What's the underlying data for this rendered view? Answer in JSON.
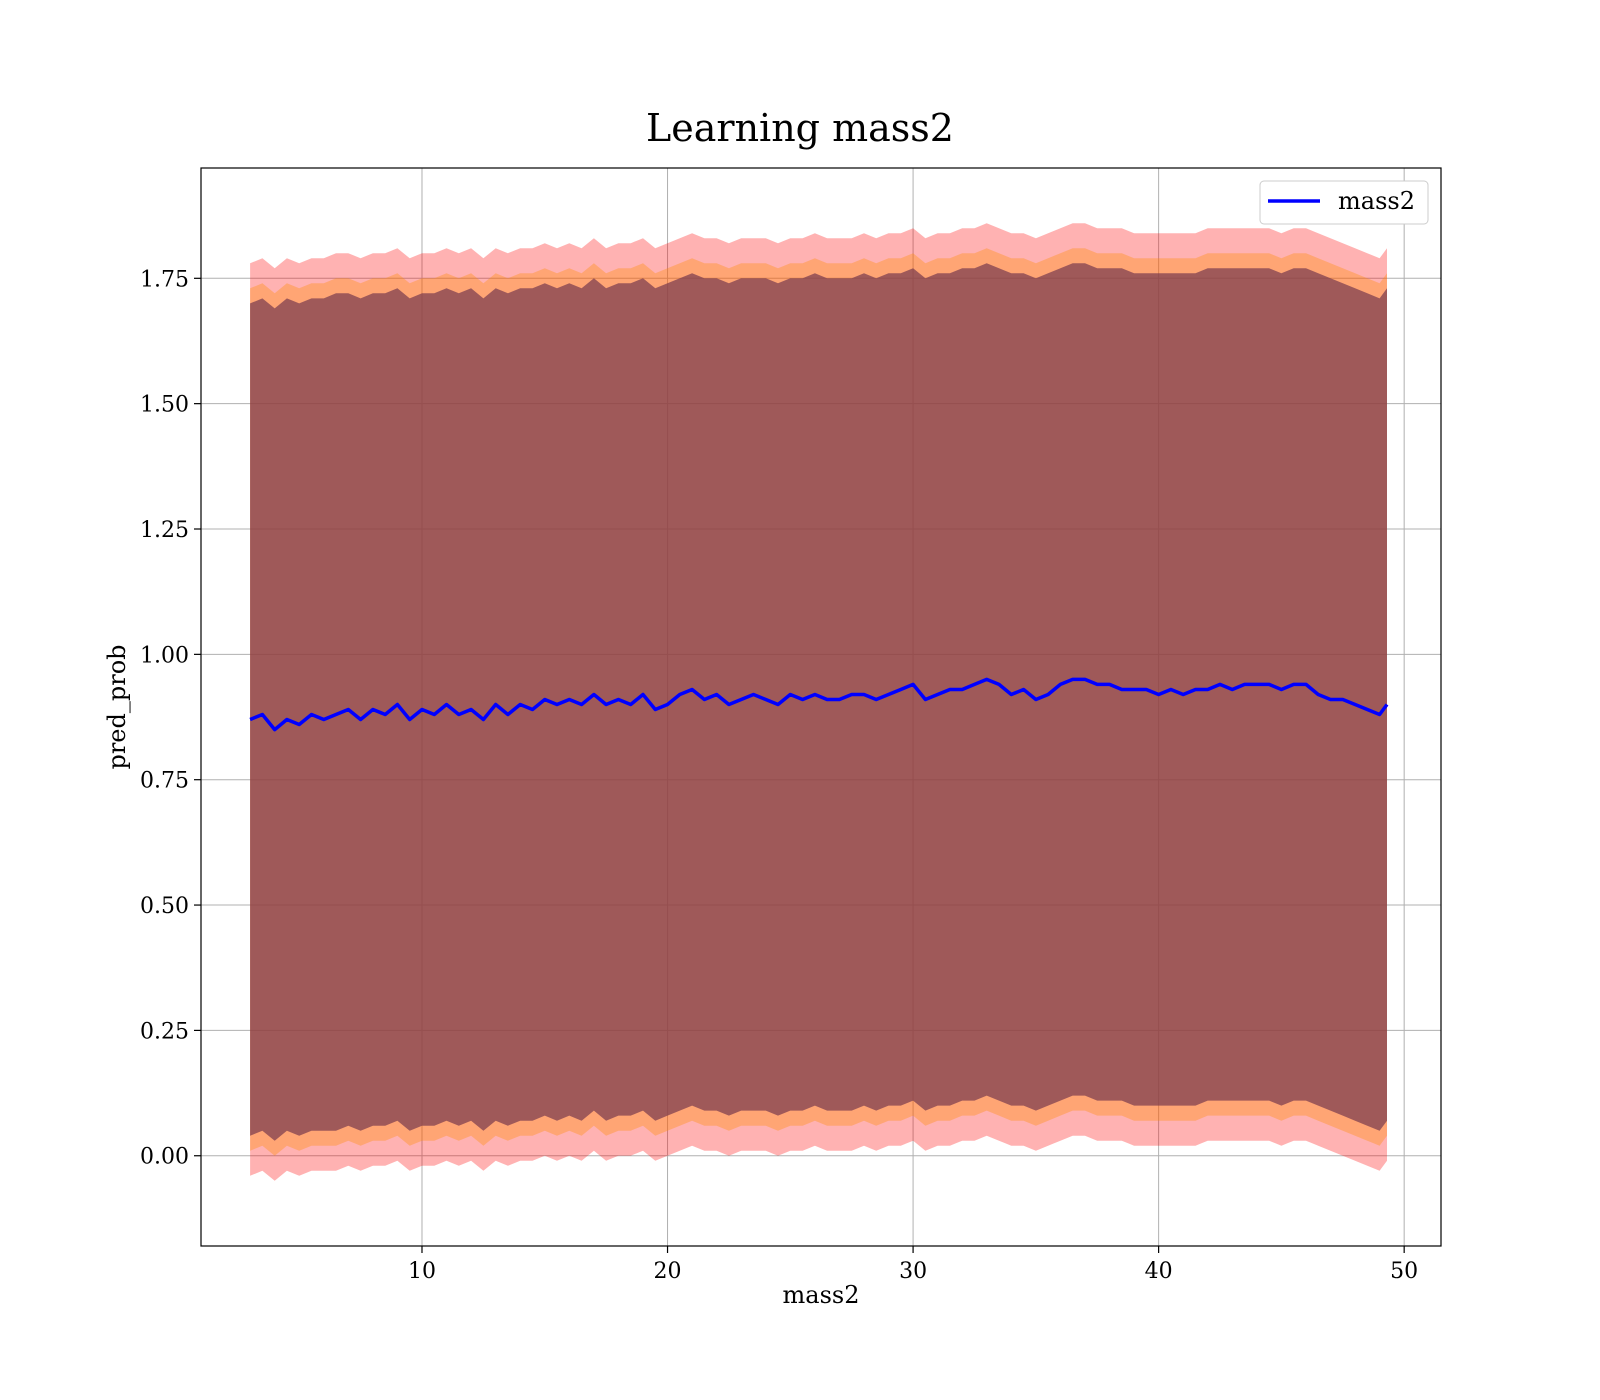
{
  "chart_data": {
    "type": "line",
    "title": "Learning mass2",
    "xlabel": "mass2",
    "ylabel": "pred_prob",
    "xlim": [
      1.0,
      51.5
    ],
    "ylim": [
      -0.18,
      1.97
    ],
    "xticks": [
      10,
      20,
      30,
      40,
      50
    ],
    "xtick_labels": [
      "10",
      "20",
      "30",
      "40",
      "50"
    ],
    "yticks": [
      0.0,
      0.25,
      0.5,
      0.75,
      1.0,
      1.25,
      1.5,
      1.75
    ],
    "ytick_labels": [
      "0.00",
      "0.25",
      "0.50",
      "0.75",
      "1.00",
      "1.25",
      "1.50",
      "1.75"
    ],
    "grid": true,
    "legend": {
      "position": "top-right",
      "entries": [
        "mass2"
      ]
    },
    "series": [
      {
        "name": "mass2",
        "color": "#0000ff",
        "x": [
          3.0,
          3.5,
          4.0,
          4.5,
          5.0,
          5.5,
          6.0,
          6.5,
          7.0,
          7.5,
          8.0,
          8.5,
          9.0,
          9.5,
          10.0,
          10.5,
          11.0,
          11.5,
          12.0,
          12.5,
          13.0,
          13.5,
          14.0,
          14.5,
          15.0,
          15.5,
          16.0,
          16.5,
          17.0,
          17.5,
          18.0,
          18.5,
          19.0,
          19.5,
          20.0,
          20.5,
          21.0,
          21.5,
          22.0,
          22.5,
          23.0,
          23.5,
          24.0,
          24.5,
          25.0,
          25.5,
          26.0,
          26.5,
          27.0,
          27.5,
          28.0,
          28.5,
          29.0,
          29.5,
          30.0,
          30.5,
          31.0,
          31.5,
          32.0,
          32.5,
          33.0,
          33.5,
          34.0,
          34.5,
          35.0,
          35.5,
          36.0,
          36.5,
          37.0,
          37.5,
          38.0,
          38.5,
          39.0,
          39.5,
          40.0,
          40.5,
          41.0,
          41.5,
          42.0,
          42.5,
          43.0,
          43.5,
          44.0,
          44.5,
          45.0,
          45.5,
          46.0,
          46.5,
          47.0,
          47.5,
          48.0,
          48.5,
          49.0,
          49.3
        ],
        "y": [
          0.87,
          0.88,
          0.85,
          0.87,
          0.86,
          0.88,
          0.87,
          0.88,
          0.89,
          0.87,
          0.89,
          0.88,
          0.9,
          0.87,
          0.89,
          0.88,
          0.9,
          0.88,
          0.89,
          0.87,
          0.9,
          0.88,
          0.9,
          0.89,
          0.91,
          0.9,
          0.91,
          0.9,
          0.92,
          0.9,
          0.91,
          0.9,
          0.92,
          0.89,
          0.9,
          0.92,
          0.93,
          0.91,
          0.92,
          0.9,
          0.91,
          0.92,
          0.91,
          0.9,
          0.92,
          0.91,
          0.92,
          0.91,
          0.91,
          0.92,
          0.92,
          0.91,
          0.92,
          0.93,
          0.94,
          0.91,
          0.92,
          0.93,
          0.93,
          0.94,
          0.95,
          0.94,
          0.92,
          0.93,
          0.91,
          0.92,
          0.94,
          0.95,
          0.95,
          0.94,
          0.94,
          0.93,
          0.93,
          0.93,
          0.92,
          0.93,
          0.92,
          0.93,
          0.93,
          0.94,
          0.93,
          0.94,
          0.94,
          0.94,
          0.93,
          0.94,
          0.94,
          0.92,
          0.91,
          0.91,
          0.9,
          0.89,
          0.88,
          0.9
        ],
        "upper_band": [
          1.73,
          1.74,
          1.72,
          1.74,
          1.73,
          1.74,
          1.74,
          1.75,
          1.75,
          1.74,
          1.75,
          1.75,
          1.76,
          1.74,
          1.75,
          1.75,
          1.76,
          1.75,
          1.76,
          1.74,
          1.76,
          1.75,
          1.76,
          1.76,
          1.77,
          1.76,
          1.77,
          1.76,
          1.78,
          1.76,
          1.77,
          1.77,
          1.78,
          1.76,
          1.77,
          1.78,
          1.79,
          1.78,
          1.78,
          1.77,
          1.78,
          1.78,
          1.78,
          1.77,
          1.78,
          1.78,
          1.79,
          1.78,
          1.78,
          1.78,
          1.79,
          1.78,
          1.79,
          1.79,
          1.8,
          1.78,
          1.79,
          1.79,
          1.8,
          1.8,
          1.81,
          1.8,
          1.79,
          1.79,
          1.78,
          1.79,
          1.8,
          1.81,
          1.81,
          1.8,
          1.8,
          1.8,
          1.79,
          1.79,
          1.79,
          1.79,
          1.79,
          1.79,
          1.8,
          1.8,
          1.8,
          1.8,
          1.8,
          1.8,
          1.79,
          1.8,
          1.8,
          1.79,
          1.78,
          1.77,
          1.76,
          1.75,
          1.74,
          1.76
        ],
        "lower_band": [
          0.01,
          0.02,
          0.0,
          0.02,
          0.01,
          0.02,
          0.02,
          0.02,
          0.03,
          0.02,
          0.03,
          0.03,
          0.04,
          0.02,
          0.03,
          0.03,
          0.04,
          0.03,
          0.04,
          0.02,
          0.04,
          0.03,
          0.04,
          0.04,
          0.05,
          0.04,
          0.05,
          0.04,
          0.06,
          0.04,
          0.05,
          0.05,
          0.06,
          0.04,
          0.05,
          0.06,
          0.07,
          0.06,
          0.06,
          0.05,
          0.06,
          0.06,
          0.06,
          0.05,
          0.06,
          0.06,
          0.07,
          0.06,
          0.06,
          0.06,
          0.07,
          0.06,
          0.07,
          0.07,
          0.08,
          0.06,
          0.07,
          0.07,
          0.08,
          0.08,
          0.09,
          0.08,
          0.07,
          0.07,
          0.06,
          0.07,
          0.08,
          0.09,
          0.09,
          0.08,
          0.08,
          0.08,
          0.07,
          0.07,
          0.07,
          0.07,
          0.07,
          0.07,
          0.08,
          0.08,
          0.08,
          0.08,
          0.08,
          0.08,
          0.07,
          0.08,
          0.08,
          0.07,
          0.06,
          0.05,
          0.04,
          0.03,
          0.02,
          0.04
        ],
        "upper_outer_band": [
          1.78,
          1.79,
          1.77,
          1.79,
          1.78,
          1.79,
          1.79,
          1.8,
          1.8,
          1.79,
          1.8,
          1.8,
          1.81,
          1.79,
          1.8,
          1.8,
          1.81,
          1.8,
          1.81,
          1.79,
          1.81,
          1.8,
          1.81,
          1.81,
          1.82,
          1.81,
          1.82,
          1.81,
          1.83,
          1.81,
          1.82,
          1.82,
          1.83,
          1.81,
          1.82,
          1.83,
          1.84,
          1.83,
          1.83,
          1.82,
          1.83,
          1.83,
          1.83,
          1.82,
          1.83,
          1.83,
          1.84,
          1.83,
          1.83,
          1.83,
          1.84,
          1.83,
          1.84,
          1.84,
          1.85,
          1.83,
          1.84,
          1.84,
          1.85,
          1.85,
          1.86,
          1.85,
          1.84,
          1.84,
          1.83,
          1.84,
          1.85,
          1.86,
          1.86,
          1.85,
          1.85,
          1.85,
          1.84,
          1.84,
          1.84,
          1.84,
          1.84,
          1.84,
          1.85,
          1.85,
          1.85,
          1.85,
          1.85,
          1.85,
          1.84,
          1.85,
          1.85,
          1.84,
          1.83,
          1.82,
          1.81,
          1.8,
          1.79,
          1.81
        ],
        "lower_outer_band": [
          -0.04,
          -0.03,
          -0.05,
          -0.03,
          -0.04,
          -0.03,
          -0.03,
          -0.03,
          -0.02,
          -0.03,
          -0.02,
          -0.02,
          -0.01,
          -0.03,
          -0.02,
          -0.02,
          -0.01,
          -0.02,
          -0.01,
          -0.03,
          -0.01,
          -0.02,
          -0.01,
          -0.01,
          0.0,
          -0.01,
          0.0,
          -0.01,
          0.01,
          -0.01,
          0.0,
          0.0,
          0.01,
          -0.01,
          0.0,
          0.01,
          0.02,
          0.01,
          0.01,
          0.0,
          0.01,
          0.01,
          0.01,
          0.0,
          0.01,
          0.01,
          0.02,
          0.01,
          0.01,
          0.01,
          0.02,
          0.01,
          0.02,
          0.02,
          0.03,
          0.01,
          0.02,
          0.02,
          0.03,
          0.03,
          0.04,
          0.03,
          0.02,
          0.02,
          0.01,
          0.02,
          0.03,
          0.04,
          0.04,
          0.03,
          0.03,
          0.03,
          0.02,
          0.02,
          0.02,
          0.02,
          0.02,
          0.02,
          0.03,
          0.03,
          0.03,
          0.03,
          0.03,
          0.03,
          0.02,
          0.03,
          0.03,
          0.02,
          0.01,
          0.0,
          -0.01,
          -0.02,
          -0.03,
          -0.01
        ]
      }
    ]
  },
  "colors": {
    "line": "#0000ff",
    "band_outer": "#ff0000",
    "band_inner": "#ff8c00",
    "band_core": "#7a3b4f",
    "grid": "#b0b0b0"
  }
}
